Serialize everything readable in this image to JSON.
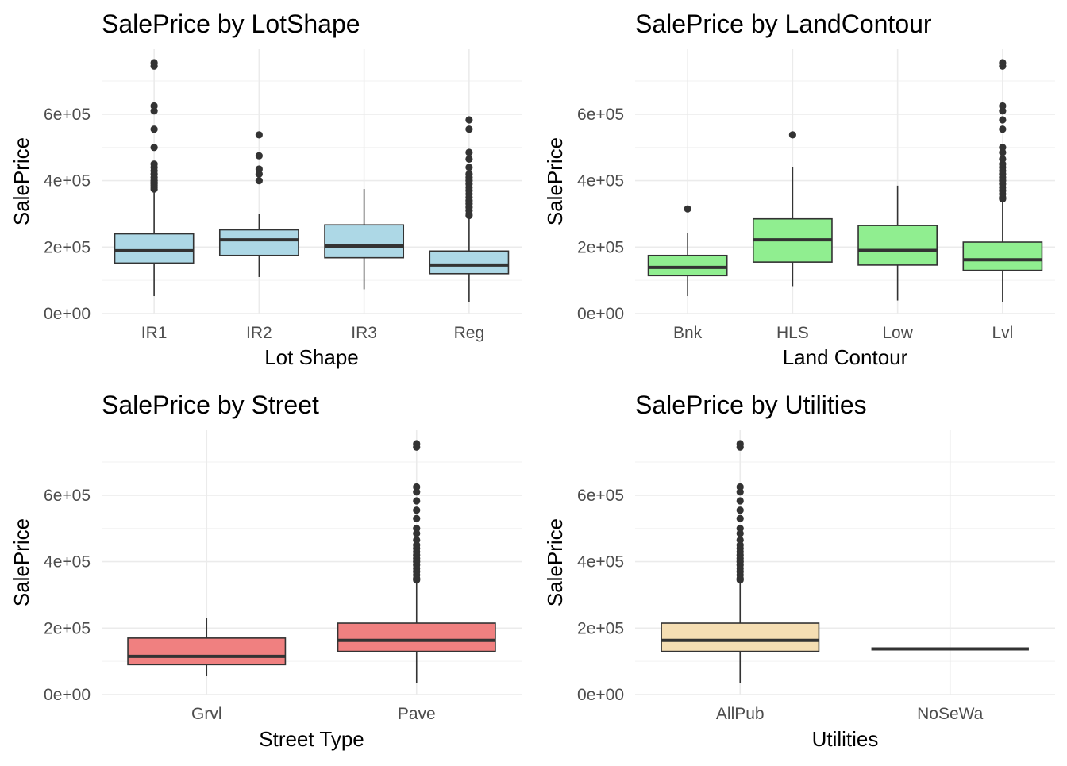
{
  "chart_data": [
    {
      "type": "box",
      "title": "SalePrice by LotShape",
      "xlabel": "Lot Shape",
      "ylabel": "SalePrice",
      "ylim": [
        0,
        780000
      ],
      "yticks": [
        0,
        200000,
        400000,
        600000
      ],
      "ytick_labels": [
        "0e+00",
        "2e+05",
        "4e+05",
        "6e+05"
      ],
      "fill": "#add8e6",
      "categories": [
        "IR1",
        "IR2",
        "IR3",
        "Reg"
      ],
      "boxes": [
        {
          "low": 52500,
          "q1": 152000,
          "median": 189000,
          "q3": 240000,
          "high": 370000,
          "outliers": [
            375000,
            380000,
            385000,
            390000,
            395000,
            400000,
            410000,
            420000,
            430000,
            440000,
            450000,
            500000,
            555000,
            610000,
            625000,
            745000,
            755000
          ]
        },
        {
          "low": 110000,
          "q1": 175000,
          "median": 222000,
          "q3": 252000,
          "high": 300000,
          "outliers": [
            400000,
            420000,
            435000,
            475000,
            538000
          ]
        },
        {
          "low": 73000,
          "q1": 168000,
          "median": 203000,
          "q3": 267000,
          "high": 375000,
          "outliers": []
        },
        {
          "low": 34900,
          "q1": 120000,
          "median": 146000,
          "q3": 188000,
          "high": 290000,
          "outliers": [
            295000,
            300000,
            310000,
            320000,
            330000,
            340000,
            350000,
            360000,
            370000,
            380000,
            390000,
            400000,
            410000,
            420000,
            440000,
            465000,
            485000,
            555000,
            583000
          ]
        }
      ]
    },
    {
      "type": "box",
      "title": "SalePrice by LandContour",
      "xlabel": "Land Contour",
      "ylabel": "SalePrice",
      "ylim": [
        0,
        780000
      ],
      "yticks": [
        0,
        200000,
        400000,
        600000
      ],
      "ytick_labels": [
        "0e+00",
        "2e+05",
        "4e+05",
        "6e+05"
      ],
      "fill": "#90ee90",
      "categories": [
        "Bnk",
        "HLS",
        "Low",
        "Lvl"
      ],
      "boxes": [
        {
          "low": 52500,
          "q1": 114000,
          "median": 139000,
          "q3": 175000,
          "high": 242000,
          "outliers": [
            315000
          ]
        },
        {
          "low": 82500,
          "q1": 155000,
          "median": 222000,
          "q3": 285000,
          "high": 440000,
          "outliers": [
            538000
          ]
        },
        {
          "low": 39300,
          "q1": 146000,
          "median": 190000,
          "q3": 265000,
          "high": 385000,
          "outliers": []
        },
        {
          "low": 34900,
          "q1": 130000,
          "median": 162000,
          "q3": 215000,
          "high": 340000,
          "outliers": [
            345000,
            350000,
            360000,
            370000,
            380000,
            390000,
            400000,
            410000,
            420000,
            430000,
            440000,
            450000,
            465000,
            485000,
            500000,
            555000,
            583000,
            610000,
            625000,
            745000,
            755000
          ]
        }
      ]
    },
    {
      "type": "box",
      "title": "SalePrice by Street",
      "xlabel": "Street Type",
      "ylabel": "SalePrice",
      "ylim": [
        0,
        780000
      ],
      "yticks": [
        0,
        200000,
        400000,
        600000
      ],
      "ytick_labels": [
        "0e+00",
        "2e+05",
        "4e+05",
        "6e+05"
      ],
      "fill": "#f08080",
      "categories": [
        "Grvl",
        "Pave"
      ],
      "boxes": [
        {
          "low": 55000,
          "q1": 90000,
          "median": 115000,
          "q3": 170000,
          "high": 230000,
          "outliers": []
        },
        {
          "low": 34900,
          "q1": 130000,
          "median": 163000,
          "q3": 215000,
          "high": 340000,
          "outliers": [
            345000,
            350000,
            360000,
            370000,
            380000,
            390000,
            400000,
            410000,
            420000,
            430000,
            440000,
            450000,
            465000,
            485000,
            500000,
            530000,
            555000,
            583000,
            610000,
            625000,
            745000,
            755000
          ]
        }
      ]
    },
    {
      "type": "box",
      "title": "SalePrice by Utilities",
      "xlabel": "Utilities",
      "ylabel": "SalePrice",
      "ylim": [
        0,
        780000
      ],
      "yticks": [
        0,
        200000,
        400000,
        600000
      ],
      "ytick_labels": [
        "0e+00",
        "2e+05",
        "4e+05",
        "6e+05"
      ],
      "fill": "#f5deb3",
      "categories": [
        "AllPub",
        "NoSeWa"
      ],
      "boxes": [
        {
          "low": 34900,
          "q1": 130000,
          "median": 163000,
          "q3": 215000,
          "high": 340000,
          "outliers": [
            345000,
            350000,
            360000,
            370000,
            380000,
            390000,
            400000,
            410000,
            420000,
            430000,
            440000,
            450000,
            465000,
            485000,
            500000,
            530000,
            555000,
            583000,
            610000,
            625000,
            745000,
            755000
          ]
        },
        {
          "low": 137500,
          "q1": 137500,
          "median": 137500,
          "q3": 137500,
          "high": 137500,
          "outliers": []
        }
      ]
    }
  ]
}
